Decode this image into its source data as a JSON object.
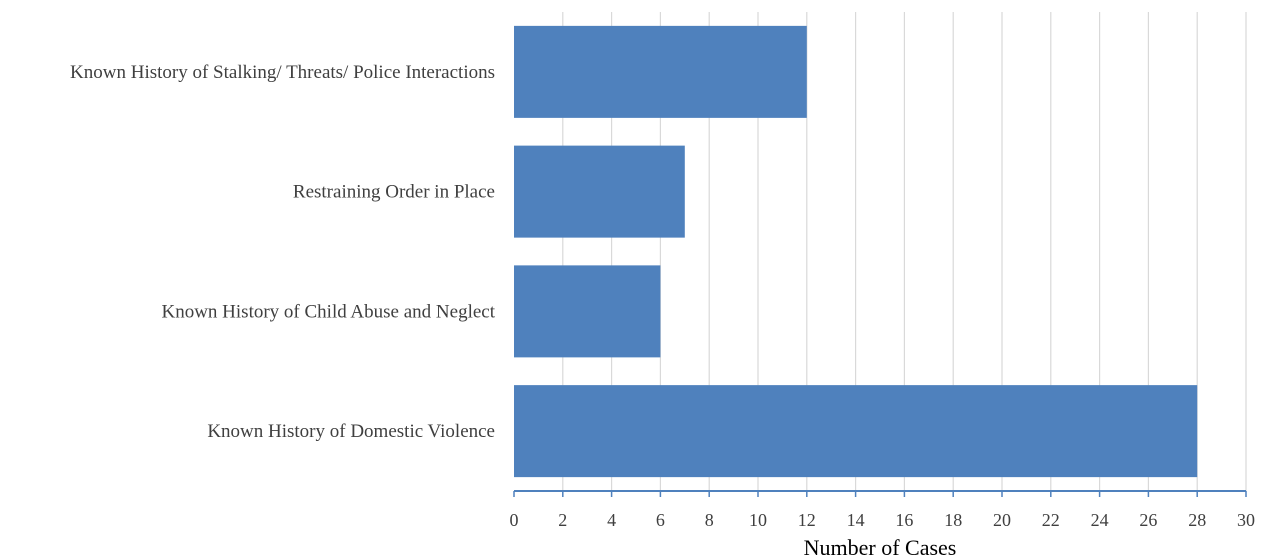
{
  "chart_data": {
    "type": "bar",
    "orientation": "horizontal",
    "title": "",
    "xlabel": "Number of Cases",
    "ylabel": "",
    "categories": [
      "Known History of Stalking/ Threats/ Police Interactions",
      "Restraining Order in Place",
      "Known History of Child Abuse and Neglect",
      "Known History of Domestic Violence"
    ],
    "values": [
      12,
      7,
      6,
      28
    ],
    "xlim": [
      0,
      30
    ],
    "xticks": [
      0,
      2,
      4,
      6,
      8,
      10,
      12,
      14,
      16,
      18,
      20,
      22,
      24,
      26,
      28,
      30
    ],
    "grid": true,
    "legend": "none",
    "colors": {
      "bar": "#4f81bd",
      "grid": "#d9d9d9",
      "axis": "#4f81bd"
    }
  }
}
